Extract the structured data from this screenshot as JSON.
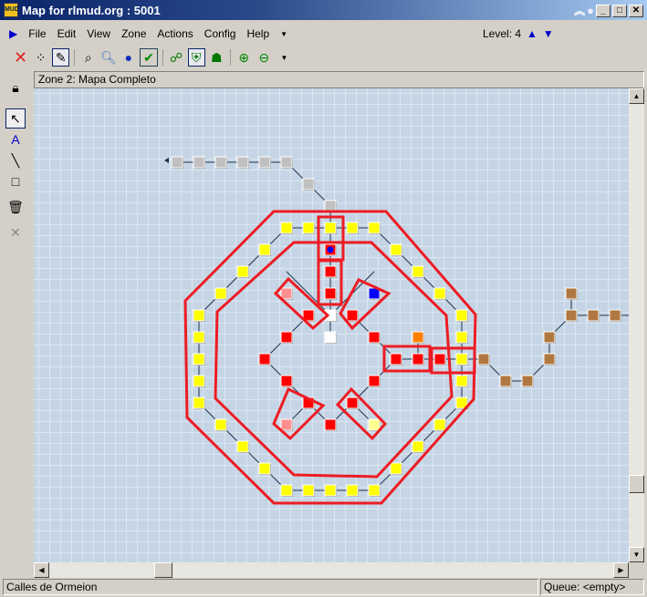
{
  "window": {
    "title": "Map for rlmud.org : 5001",
    "app_icon_text": "MUD"
  },
  "menu": [
    "File",
    "Edit",
    "View",
    "Zone",
    "Actions",
    "Config",
    "Help"
  ],
  "level": {
    "label": "Level: 4"
  },
  "zone_title": "Zone 2: Mapa Completo",
  "status": {
    "left": "Calles de Ormeion",
    "right": "Queue: <empty>"
  },
  "colors": {
    "map_bg": "#c5d5e5",
    "path": "#ed1c24",
    "street": "#ffff00",
    "inner": "#ff0000",
    "gray": "#c0c0c0",
    "brown": "#b07840",
    "orange": "#ff8000",
    "blue": "#0000ff",
    "pink": "#ff9090",
    "white": "#ffffff"
  }
}
